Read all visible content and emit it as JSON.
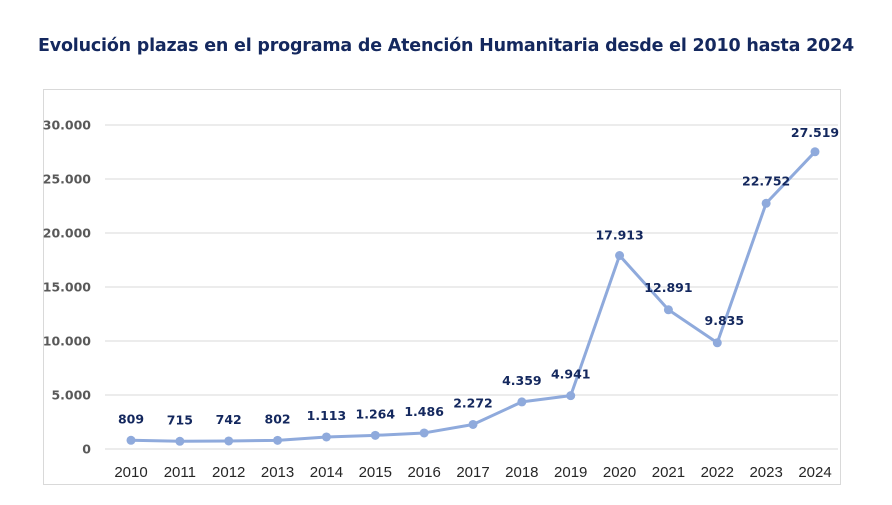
{
  "chart_data": {
    "type": "line",
    "title": "Evolución plazas en el programa de Atención Humanitaria desde el 2010 hasta 2024",
    "xlabel": "",
    "ylabel": "",
    "categories": [
      "2010",
      "2011",
      "2012",
      "2013",
      "2014",
      "2015",
      "2016",
      "2017",
      "2018",
      "2019",
      "2020",
      "2021",
      "2022",
      "2023",
      "2024"
    ],
    "series": [
      {
        "name": "Plazas",
        "values": [
          809,
          715,
          742,
          802,
          1113,
          1264,
          1486,
          2272,
          4359,
          4941,
          17913,
          12891,
          9835,
          22752,
          27519
        ],
        "labels": [
          "809",
          "715",
          "742",
          "802",
          "1.113",
          "1.264",
          "1.486",
          "2.272",
          "4.359",
          "4.941",
          "17.913",
          "12.891",
          "9.835",
          "22.752",
          "27.519"
        ],
        "color": "#8faadc"
      }
    ],
    "ylim": [
      0,
      30000
    ],
    "yticks": [
      0,
      5000,
      10000,
      15000,
      20000,
      25000,
      30000
    ],
    "ytick_labels": [
      "0",
      "5.000",
      "10.000",
      "15.000",
      "20.000",
      "25.000",
      "30.000"
    ],
    "grid": true,
    "legend": "none",
    "label_color": "#14285e",
    "title_color": "#14285e"
  }
}
